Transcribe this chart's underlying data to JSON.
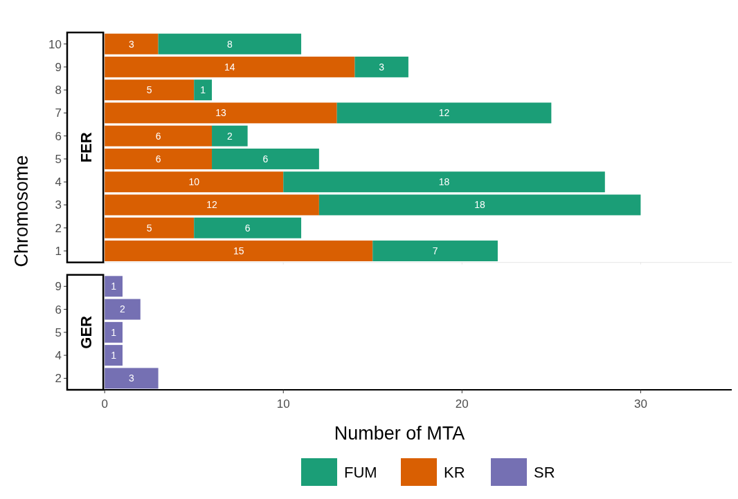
{
  "chart_data": [
    {
      "type": "bar",
      "title": "FER",
      "orientation": "horizontal",
      "stacked": true,
      "ylabel": "Chromosome",
      "categories": [
        "10",
        "9",
        "8",
        "7",
        "6",
        "5",
        "4",
        "3",
        "2",
        "1"
      ],
      "series": [
        {
          "name": "KR",
          "color": "#d95f02",
          "values": [
            3,
            14,
            5,
            13,
            6,
            6,
            10,
            12,
            5,
            15
          ]
        },
        {
          "name": "FUM",
          "color": "#1b9e77",
          "values": [
            8,
            3,
            1,
            12,
            2,
            6,
            18,
            18,
            6,
            7
          ]
        }
      ],
      "xlim": [
        -2.1,
        35.1
      ],
      "xticks": [
        0,
        10,
        20,
        30
      ],
      "tick_labels": "y",
      "data_labels": true,
      "grid": false,
      "legend": "bottom"
    },
    {
      "type": "bar",
      "title": "GER",
      "orientation": "horizontal",
      "stacked": true,
      "xlabel": "Number of MTA",
      "categories": [
        "9",
        "6",
        "5",
        "4",
        "2"
      ],
      "series": [
        {
          "name": "SR",
          "color": "#7570b3",
          "values": [
            1,
            2,
            1,
            1,
            3
          ]
        }
      ],
      "xlim": [
        -2.1,
        35.1
      ],
      "xticks": [
        0,
        10,
        20,
        30
      ],
      "data_labels": true,
      "grid": false,
      "legend": "bottom"
    }
  ]
}
